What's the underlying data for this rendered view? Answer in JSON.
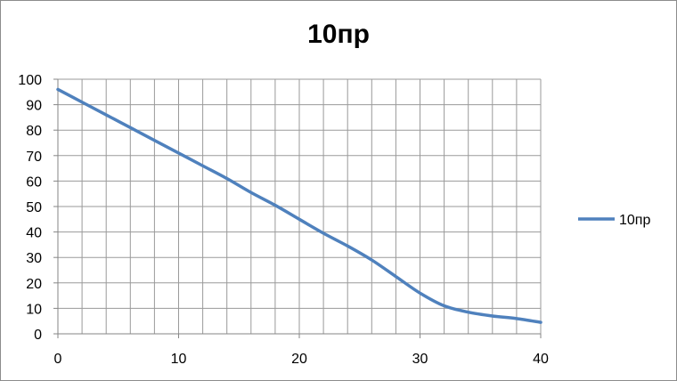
{
  "chart_data": {
    "type": "line",
    "title": "10пр",
    "xlabel": "",
    "ylabel": "",
    "xlim": [
      0,
      40
    ],
    "ylim": [
      0,
      100
    ],
    "x_ticks": [
      0,
      10,
      20,
      30,
      40
    ],
    "y_ticks": [
      0,
      10,
      20,
      30,
      40,
      50,
      60,
      70,
      80,
      90,
      100
    ],
    "x_minor_step": 2,
    "grid": true,
    "legend_position": "right",
    "series": [
      {
        "name": "10пр",
        "color": "#4f81bd",
        "x": [
          0,
          2,
          4,
          6,
          8,
          10,
          12,
          14,
          16,
          18,
          20,
          22,
          24,
          26,
          28,
          30,
          32,
          34,
          36,
          38,
          40
        ],
        "y": [
          96,
          91,
          86,
          81,
          76,
          71,
          66,
          61,
          55.5,
          50.5,
          45,
          39.5,
          34.5,
          29,
          22.5,
          16,
          11,
          8.5,
          7,
          6,
          4.5
        ]
      }
    ]
  }
}
